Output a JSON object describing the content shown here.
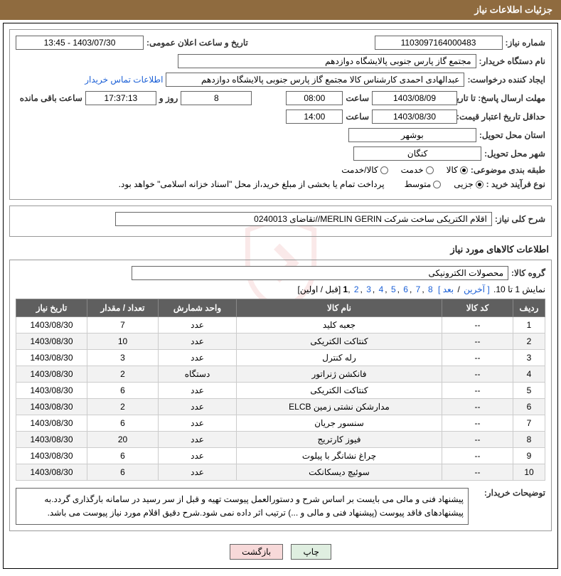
{
  "header": {
    "title": "جزئیات اطلاعات نیاز"
  },
  "fields": {
    "need_no_label": "شماره نیاز:",
    "need_no": "1103097164000483",
    "announce_label": "تاریخ و ساعت اعلان عمومی:",
    "announce_value": "1403/07/30 - 13:45",
    "buyer_label": "نام دستگاه خریدار:",
    "buyer_value": "مجتمع گاز پارس جنوبی  پالایشگاه دوازدهم",
    "requester_label": "ایجاد کننده درخواست:",
    "requester_value": "عبدالهادی احمدی کارشناس کالا مجتمع گاز پارس جنوبی  پالایشگاه دوازدهم",
    "contact_link": "اطلاعات تماس خریدار",
    "deadline_label": "مهلت ارسال پاسخ: تا تاریخ:",
    "deadline_date": "1403/08/09",
    "time_label": "ساعت",
    "deadline_time": "08:00",
    "days_value": "8",
    "days_label": "روز و",
    "remaining_time": "17:37:13",
    "remaining_label": "ساعت باقی مانده",
    "validity_label": "حداقل تاریخ اعتبار قیمت: تا تاریخ:",
    "validity_date": "1403/08/30",
    "validity_time": "14:00",
    "province_label": "استان محل تحویل:",
    "province_value": "بوشهر",
    "city_label": "شهر محل تحویل:",
    "city_value": "کنگان",
    "category_label": "طبقه بندی موضوعی:",
    "cat_goods": "کالا",
    "cat_service": "خدمت",
    "cat_both": "کالا/خدمت",
    "process_label": "نوع فرآیند خرید :",
    "proc_small": "جزیی",
    "proc_medium": "متوسط",
    "payment_note": "پرداخت تمام یا بخشی از مبلغ خرید،از محل \"اسناد خزانه اسلامی\" خواهد بود.",
    "desc_label": "شرح کلی نیاز:",
    "desc_value": "اقلام الکتریکی ساخت شرکت MERLIN GERIN//تقاضای 0240013",
    "goods_info_title": "اطلاعات کالاهای مورد نیاز",
    "group_label": "گروه کالا:",
    "group_value": "محصولات الکترونیکی",
    "pager_text": "نمایش 1 تا 10.",
    "pager_last": "[ آخرین",
    "pager_next": "بعد ]",
    "pager_prevfirst": "[قبل / اولین]",
    "buyer_notes_label": "توضیحات خریدار:",
    "buyer_notes": "پیشنهاد فنی و مالی می بایست بر اساس شرح و دستورالعمل پیوست تهیه و قبل از سر رسید در سامانه بارگذاری گردد.به پیشنهادهای فاقد پیوست (پیشنهاد فنی و مالی و ...) ترتیب اثر داده نمی شود.شرح دقیق اقلام مورد نیاز پیوست می باشد.",
    "btn_print": "چاپ",
    "btn_back": "بازگشت"
  },
  "table": {
    "headers": {
      "row": "ردیف",
      "code": "کد کالا",
      "name": "نام کالا",
      "unit": "واحد شمارش",
      "qty": "تعداد / مقدار",
      "date": "تاریخ نیاز"
    },
    "rows": [
      {
        "n": "1",
        "code": "--",
        "name": "جعبه کلید",
        "unit": "عدد",
        "qty": "7",
        "date": "1403/08/30"
      },
      {
        "n": "2",
        "code": "--",
        "name": "کنتاکت الکتریکی",
        "unit": "عدد",
        "qty": "10",
        "date": "1403/08/30"
      },
      {
        "n": "3",
        "code": "--",
        "name": "رله کنترل",
        "unit": "عدد",
        "qty": "3",
        "date": "1403/08/30"
      },
      {
        "n": "4",
        "code": "--",
        "name": "فانکشن ژنراتور",
        "unit": "دستگاه",
        "qty": "2",
        "date": "1403/08/30"
      },
      {
        "n": "5",
        "code": "--",
        "name": "کنتاکت الکتریکی",
        "unit": "عدد",
        "qty": "6",
        "date": "1403/08/30"
      },
      {
        "n": "6",
        "code": "--",
        "name": "مدارشکن نشتی زمین ELCB",
        "unit": "عدد",
        "qty": "2",
        "date": "1403/08/30"
      },
      {
        "n": "7",
        "code": "--",
        "name": "سنسور جریان",
        "unit": "عدد",
        "qty": "6",
        "date": "1403/08/30"
      },
      {
        "n": "8",
        "code": "--",
        "name": "فیوز کارتریج",
        "unit": "عدد",
        "qty": "20",
        "date": "1403/08/30"
      },
      {
        "n": "9",
        "code": "--",
        "name": "چراغ نشانگر با پیلوت",
        "unit": "عدد",
        "qty": "6",
        "date": "1403/08/30"
      },
      {
        "n": "10",
        "code": "--",
        "name": "سوئیچ دیسکانکت",
        "unit": "عدد",
        "qty": "6",
        "date": "1403/08/30"
      }
    ],
    "pages": [
      "1",
      "2",
      "3",
      "4",
      "5",
      "6",
      "7",
      "8"
    ]
  },
  "colors": {
    "header_bg": "#8f6b3f",
    "th_bg": "#5f5f5f",
    "link": "#1a5fd6",
    "btn_print_bg": "#dfeee0",
    "btn_back_bg": "#f7d9d9"
  }
}
